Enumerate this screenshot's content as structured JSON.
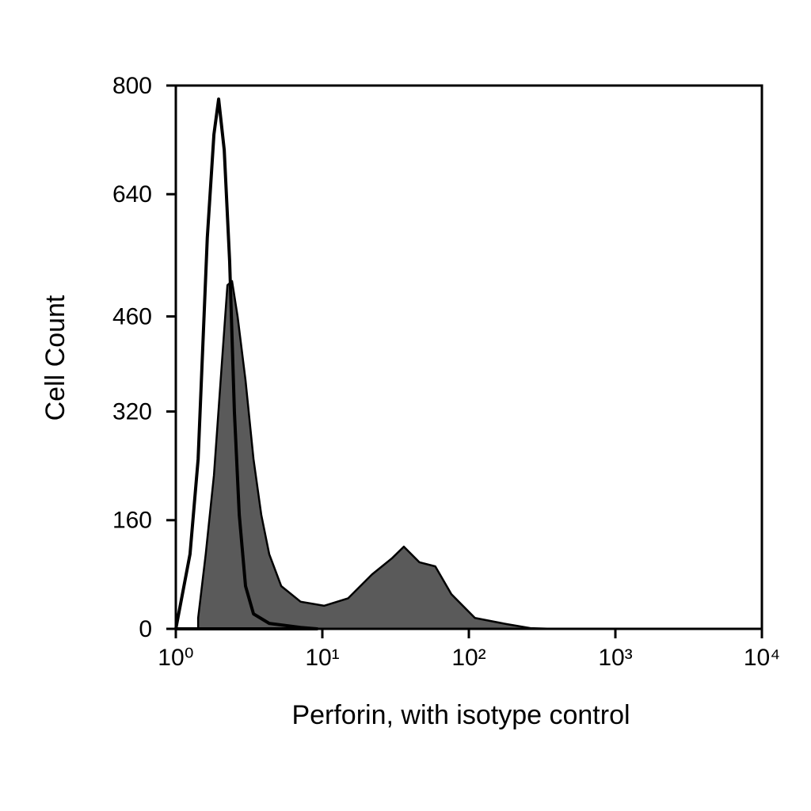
{
  "chart_data": {
    "type": "histogram",
    "xlabel": "Perforin, with isotype control",
    "ylabel": "Cell Count",
    "xscale": "log",
    "xlim": [
      1,
      10000
    ],
    "xticks": [
      {
        "value": 1,
        "label": "10⁰"
      },
      {
        "value": 10,
        "label": "10¹"
      },
      {
        "value": 100,
        "label": "10²"
      },
      {
        "value": 1000,
        "label": "10³"
      },
      {
        "value": 10000,
        "label": "10⁴"
      }
    ],
    "ylim": [
      0,
      800
    ],
    "yticks": [
      0,
      160,
      320,
      460,
      640,
      800
    ],
    "series": [
      {
        "color": "#5a5a5a",
        "x": [
          1.42,
          1.6,
          1.82,
          2.06,
          2.25,
          2.42,
          2.64,
          2.99,
          3.39,
          3.83,
          4.34,
          5.24,
          7.1,
          10.3,
          15.0,
          21.8,
          29.9,
          36,
          46,
          59,
          76,
          110,
          181,
          263,
          380
        ],
        "values": [
          16,
          110,
          226,
          390,
          506,
          512,
          460,
          366,
          250,
          168,
          110,
          63,
          40,
          34,
          45,
          80,
          104,
          121,
          98,
          92,
          51,
          16,
          7,
          1,
          0
        ]
      },
      {
        "color": "#ffffff",
        "x": [
          1.0,
          1.25,
          1.42,
          1.64,
          1.82,
          1.96,
          2.14,
          2.33,
          2.51,
          2.71,
          2.99,
          3.39,
          4.34,
          7.1,
          9.2
        ],
        "values": [
          0,
          110,
          250,
          576,
          728,
          780,
          705,
          541,
          320,
          168,
          63,
          22,
          8,
          2,
          0
        ]
      }
    ]
  }
}
